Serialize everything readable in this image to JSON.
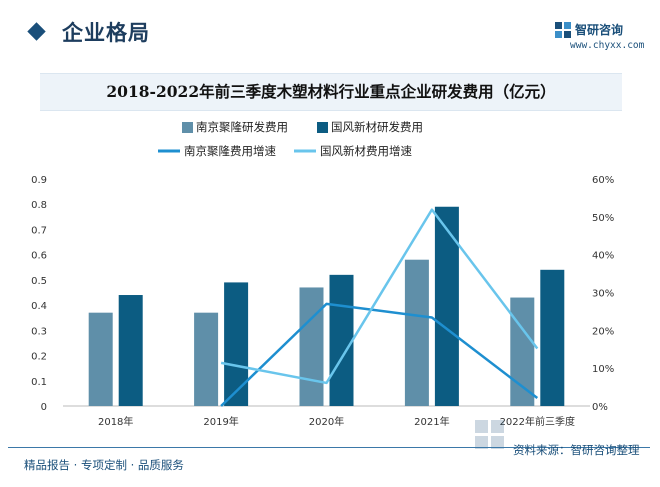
{
  "header": {
    "section_title": "企业格局",
    "brand_name": "智研咨询",
    "brand_url": "www.chyxx.com"
  },
  "footer": {
    "left_text": "精品报告 · 专项定制 · 品质服务",
    "source_text": "资料来源：智研咨询整理"
  },
  "colors": {
    "accent": "#1a4f7a",
    "series_a_bar": "#5f8fa9",
    "series_b_bar": "#0c5c82",
    "series_a_line": "#1e8fd0",
    "series_b_line": "#69c5ec",
    "title_band": "#edf3f9"
  },
  "chart_data": {
    "type": "bar",
    "title": "2018-2022年前三季度木塑材料行业重点企业研发费用（亿元）",
    "categories": [
      "2018年",
      "2019年",
      "2020年",
      "2021年",
      "2022年前三季度"
    ],
    "series": [
      {
        "name": "南京聚隆研发费用",
        "kind": "bar",
        "axis": "left",
        "values": [
          0.37,
          0.37,
          0.47,
          0.58,
          0.43
        ]
      },
      {
        "name": "国风新材研发费用",
        "kind": "bar",
        "axis": "left",
        "values": [
          0.44,
          0.49,
          0.52,
          0.79,
          0.54
        ]
      },
      {
        "name": "南京聚隆费用增速",
        "kind": "line",
        "axis": "right",
        "values": [
          null,
          0.0,
          27.0,
          23.4,
          2.1
        ]
      },
      {
        "name": "国风新材费用增速",
        "kind": "line",
        "axis": "right",
        "values": [
          null,
          11.4,
          6.1,
          51.9,
          15.2
        ]
      }
    ],
    "y_left": {
      "min": 0,
      "max": 0.9,
      "ticks": [
        "0",
        "0.1",
        "0.2",
        "0.3",
        "0.4",
        "0.5",
        "0.6",
        "0.7",
        "0.8",
        "0.9"
      ]
    },
    "y_right": {
      "min": 0,
      "max": 60,
      "ticks": [
        "0%",
        "10%",
        "20%",
        "30%",
        "40%",
        "50%",
        "60%"
      ]
    },
    "legend_position": "top-center",
    "grid": false
  }
}
